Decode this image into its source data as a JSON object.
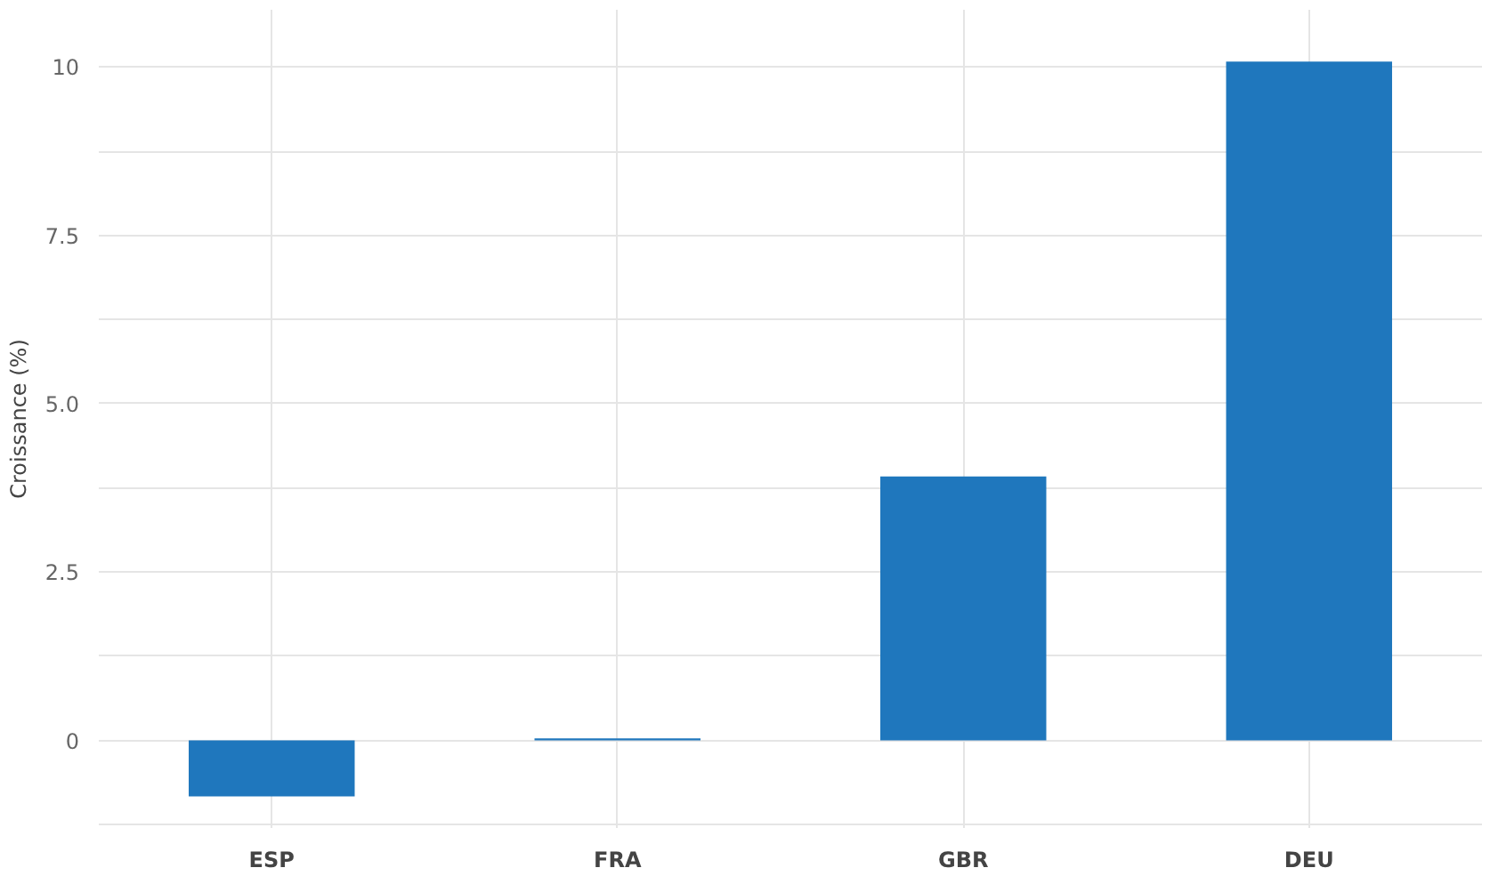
{
  "chart_data": {
    "type": "bar",
    "ylabel": "Croissance (%)",
    "categories": [
      "ESP",
      "FRA",
      "GBR",
      "DEU"
    ],
    "values": [
      -0.83,
      0.03,
      3.92,
      10.08
    ],
    "color": "#1f77bd",
    "ylim": [
      -1.3,
      10.85
    ],
    "yticks": [
      {
        "value": -1.25,
        "label": null
      },
      {
        "value": 0,
        "label": "0"
      },
      {
        "value": 1.25,
        "label": null
      },
      {
        "value": 2.5,
        "label": "2.5"
      },
      {
        "value": 3.75,
        "label": null
      },
      {
        "value": 5,
        "label": "5.0"
      },
      {
        "value": 6.25,
        "label": null
      },
      {
        "value": 7.5,
        "label": "7.5"
      },
      {
        "value": 8.75,
        "label": null
      },
      {
        "value": 10,
        "label": "10"
      }
    ],
    "grid": true
  }
}
